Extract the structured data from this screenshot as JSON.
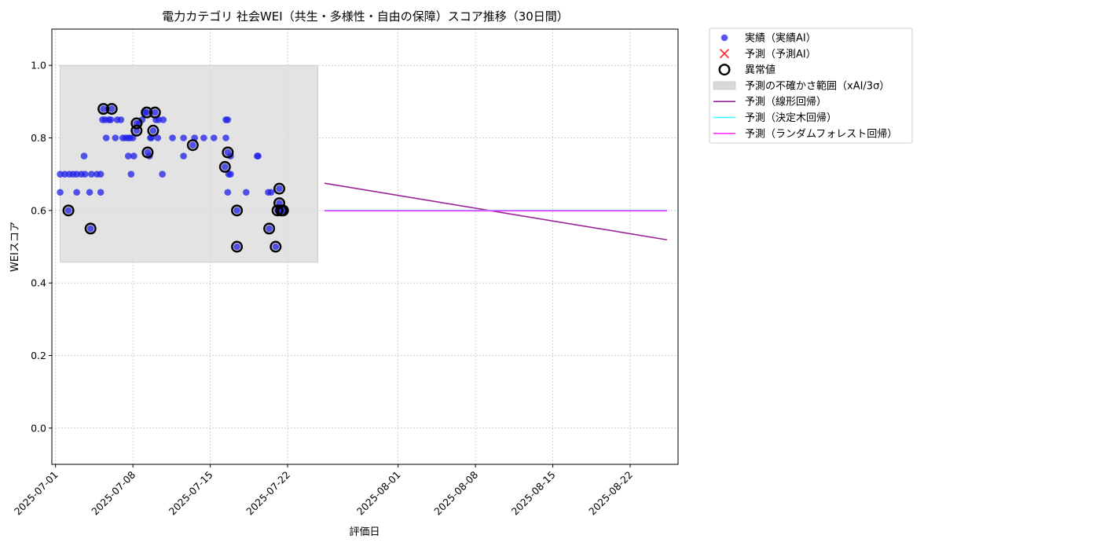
{
  "chart_data": {
    "type": "scatter",
    "title": "電力カテゴリ 社会WEI（共生・多様性・自由の保障）スコア推移（30日間）",
    "xlabel": "評価日",
    "ylabel": "WEIスコア",
    "xlim": [
      "2025-06-30T16:00",
      "2025-08-26T08:00"
    ],
    "ylim": [
      -0.1,
      1.1
    ],
    "x_ticks": [
      "2025-07-01",
      "2025-07-08",
      "2025-07-15",
      "2025-07-22",
      "2025-08-01",
      "2025-08-08",
      "2025-08-15",
      "2025-08-22"
    ],
    "y_ticks": [
      "0.0",
      "0.2",
      "0.4",
      "0.6",
      "0.8",
      "1.0"
    ],
    "grid": true,
    "legend_position": "outside-top-right",
    "legend": [
      {
        "label": "実績（実績AI）",
        "kind": "dot",
        "color": "#1f1fe8"
      },
      {
        "label": "予測（予測AI）",
        "kind": "x",
        "color": "#ff3333"
      },
      {
        "label": "異常値",
        "kind": "ring",
        "color": "#000000"
      },
      {
        "label": "予測の不確かさ範囲（xAI/3σ）",
        "kind": "band",
        "color": "#d9d9d9"
      },
      {
        "label": "予測（線形回帰）",
        "kind": "line",
        "color": "#992299"
      },
      {
        "label": "予測（決定木回帰）",
        "kind": "line",
        "color": "#33ffff"
      },
      {
        "label": "予測（ランダムフォレスト回帰）",
        "kind": "line",
        "color": "#ff33ff"
      }
    ],
    "uncertainty_band": {
      "x_start": "2025-07-01T10:00",
      "x_end": "2025-07-24T18:00",
      "y_low": 0.457,
      "y_high": 1.0,
      "color": "#d9d9d9"
    },
    "series": [
      {
        "name": "実績（実績AI）",
        "color": "#1f1fe8",
        "points": [
          [
            "2025-07-01T10:00",
            0.65
          ],
          [
            "2025-07-01T10:00",
            0.7
          ],
          [
            "2025-07-01T20:00",
            0.7
          ],
          [
            "2025-07-02T04:00",
            0.6
          ],
          [
            "2025-07-02T06:00",
            0.7
          ],
          [
            "2025-07-02T14:00",
            0.7
          ],
          [
            "2025-07-02T22:00",
            0.65
          ],
          [
            "2025-07-02T22:00",
            0.7
          ],
          [
            "2025-07-03T08:00",
            0.7
          ],
          [
            "2025-07-03T14:00",
            0.75
          ],
          [
            "2025-07-03T16:00",
            0.7
          ],
          [
            "2025-07-04T02:00",
            0.65
          ],
          [
            "2025-07-04T04:00",
            0.55
          ],
          [
            "2025-07-04T06:00",
            0.7
          ],
          [
            "2025-07-04T18:00",
            0.7
          ],
          [
            "2025-07-05T02:00",
            0.65
          ],
          [
            "2025-07-05T02:00",
            0.7
          ],
          [
            "2025-07-05T06:00",
            0.85
          ],
          [
            "2025-07-05T08:00",
            0.88
          ],
          [
            "2025-07-05T12:00",
            0.85
          ],
          [
            "2025-07-05T14:00",
            0.8
          ],
          [
            "2025-07-05T20:00",
            0.85
          ],
          [
            "2025-07-06T00:00",
            0.85
          ],
          [
            "2025-07-06T02:00",
            0.88
          ],
          [
            "2025-07-06T10:00",
            0.8
          ],
          [
            "2025-07-06T14:00",
            0.85
          ],
          [
            "2025-07-06T22:00",
            0.85
          ],
          [
            "2025-07-07T02:00",
            0.8
          ],
          [
            "2025-07-07T08:00",
            0.8
          ],
          [
            "2025-07-07T14:00",
            0.8
          ],
          [
            "2025-07-07T14:00",
            0.75
          ],
          [
            "2025-07-07T18:00",
            0.8
          ],
          [
            "2025-07-07T20:00",
            0.7
          ],
          [
            "2025-07-08T00:00",
            0.8
          ],
          [
            "2025-07-08T02:00",
            0.75
          ],
          [
            "2025-07-08T08:00",
            0.84
          ],
          [
            "2025-07-08T08:00",
            0.82
          ],
          [
            "2025-07-08T14:00",
            0.84
          ],
          [
            "2025-07-08T20:00",
            0.85
          ],
          [
            "2025-07-09T02:00",
            0.87
          ],
          [
            "2025-07-09T06:00",
            0.87
          ],
          [
            "2025-07-09T08:00",
            0.76
          ],
          [
            "2025-07-09T12:00",
            0.75
          ],
          [
            "2025-07-09T14:00",
            0.8
          ],
          [
            "2025-07-09T16:00",
            0.8
          ],
          [
            "2025-07-09T20:00",
            0.82
          ],
          [
            "2025-07-10T00:00",
            0.87
          ],
          [
            "2025-07-10T02:00",
            0.85
          ],
          [
            "2025-07-10T06:00",
            0.8
          ],
          [
            "2025-07-10T08:00",
            0.85
          ],
          [
            "2025-07-10T16:00",
            0.7
          ],
          [
            "2025-07-10T18:00",
            0.85
          ],
          [
            "2025-07-11T14:00",
            0.8
          ],
          [
            "2025-07-12T14:00",
            0.8
          ],
          [
            "2025-07-12T14:00",
            0.75
          ],
          [
            "2025-07-13T10:00",
            0.78
          ],
          [
            "2025-07-13T14:00",
            0.8
          ],
          [
            "2025-07-14T10:00",
            0.8
          ],
          [
            "2025-07-15T08:00",
            0.8
          ],
          [
            "2025-07-16T08:00",
            0.72
          ],
          [
            "2025-07-16T10:00",
            0.8
          ],
          [
            "2025-07-16T10:00",
            0.85
          ],
          [
            "2025-07-16T14:00",
            0.85
          ],
          [
            "2025-07-16T14:00",
            0.76
          ],
          [
            "2025-07-16T14:00",
            0.65
          ],
          [
            "2025-07-16T16:00",
            0.7
          ],
          [
            "2025-07-16T20:00",
            0.7
          ],
          [
            "2025-07-16T20:00",
            0.75
          ],
          [
            "2025-07-17T10:00",
            0.6
          ],
          [
            "2025-07-17T10:00",
            0.5
          ],
          [
            "2025-07-18T06:00",
            0.65
          ],
          [
            "2025-07-19T06:00",
            0.75
          ],
          [
            "2025-07-19T08:00",
            0.75
          ],
          [
            "2025-07-20T06:00",
            0.65
          ],
          [
            "2025-07-20T08:00",
            0.55
          ],
          [
            "2025-07-20T12:00",
            0.65
          ],
          [
            "2025-07-20T22:00",
            0.5
          ],
          [
            "2025-07-21T02:00",
            0.6
          ],
          [
            "2025-07-21T06:00",
            0.66
          ],
          [
            "2025-07-21T06:00",
            0.62
          ],
          [
            "2025-07-21T10:00",
            0.6
          ],
          [
            "2025-07-21T14:00",
            0.6
          ]
        ]
      },
      {
        "name": "異常値",
        "color": "#000000",
        "points": [
          [
            "2025-07-02T04:00",
            0.6
          ],
          [
            "2025-07-04T04:00",
            0.55
          ],
          [
            "2025-07-05T08:00",
            0.88
          ],
          [
            "2025-07-06T02:00",
            0.88
          ],
          [
            "2025-07-08T08:00",
            0.84
          ],
          [
            "2025-07-08T08:00",
            0.82
          ],
          [
            "2025-07-09T06:00",
            0.87
          ],
          [
            "2025-07-09T08:00",
            0.76
          ],
          [
            "2025-07-09T20:00",
            0.82
          ],
          [
            "2025-07-10T00:00",
            0.87
          ],
          [
            "2025-07-13T10:00",
            0.78
          ],
          [
            "2025-07-16T08:00",
            0.72
          ],
          [
            "2025-07-16T14:00",
            0.76
          ],
          [
            "2025-07-17T10:00",
            0.6
          ],
          [
            "2025-07-17T10:00",
            0.5
          ],
          [
            "2025-07-20T08:00",
            0.55
          ],
          [
            "2025-07-20T22:00",
            0.5
          ],
          [
            "2025-07-21T02:00",
            0.6
          ],
          [
            "2025-07-21T06:00",
            0.66
          ],
          [
            "2025-07-21T06:00",
            0.62
          ],
          [
            "2025-07-21T10:00",
            0.6
          ],
          [
            "2025-07-21T14:00",
            0.6
          ]
        ]
      },
      {
        "name": "予測（線形回帰）",
        "color": "#992299",
        "points": [
          [
            "2025-07-25T08:00",
            0.675
          ],
          [
            "2025-08-25T08:00",
            0.519
          ]
        ]
      },
      {
        "name": "予測（決定木回帰）",
        "color": "#33ffff",
        "points": [
          [
            "2025-07-25T08:00",
            0.6
          ],
          [
            "2025-08-25T08:00",
            0.6
          ]
        ]
      },
      {
        "name": "予測（ランダムフォレスト回帰）",
        "color": "#ff33ff",
        "points": [
          [
            "2025-07-25T08:00",
            0.599
          ],
          [
            "2025-08-25T08:00",
            0.599
          ]
        ]
      }
    ]
  }
}
